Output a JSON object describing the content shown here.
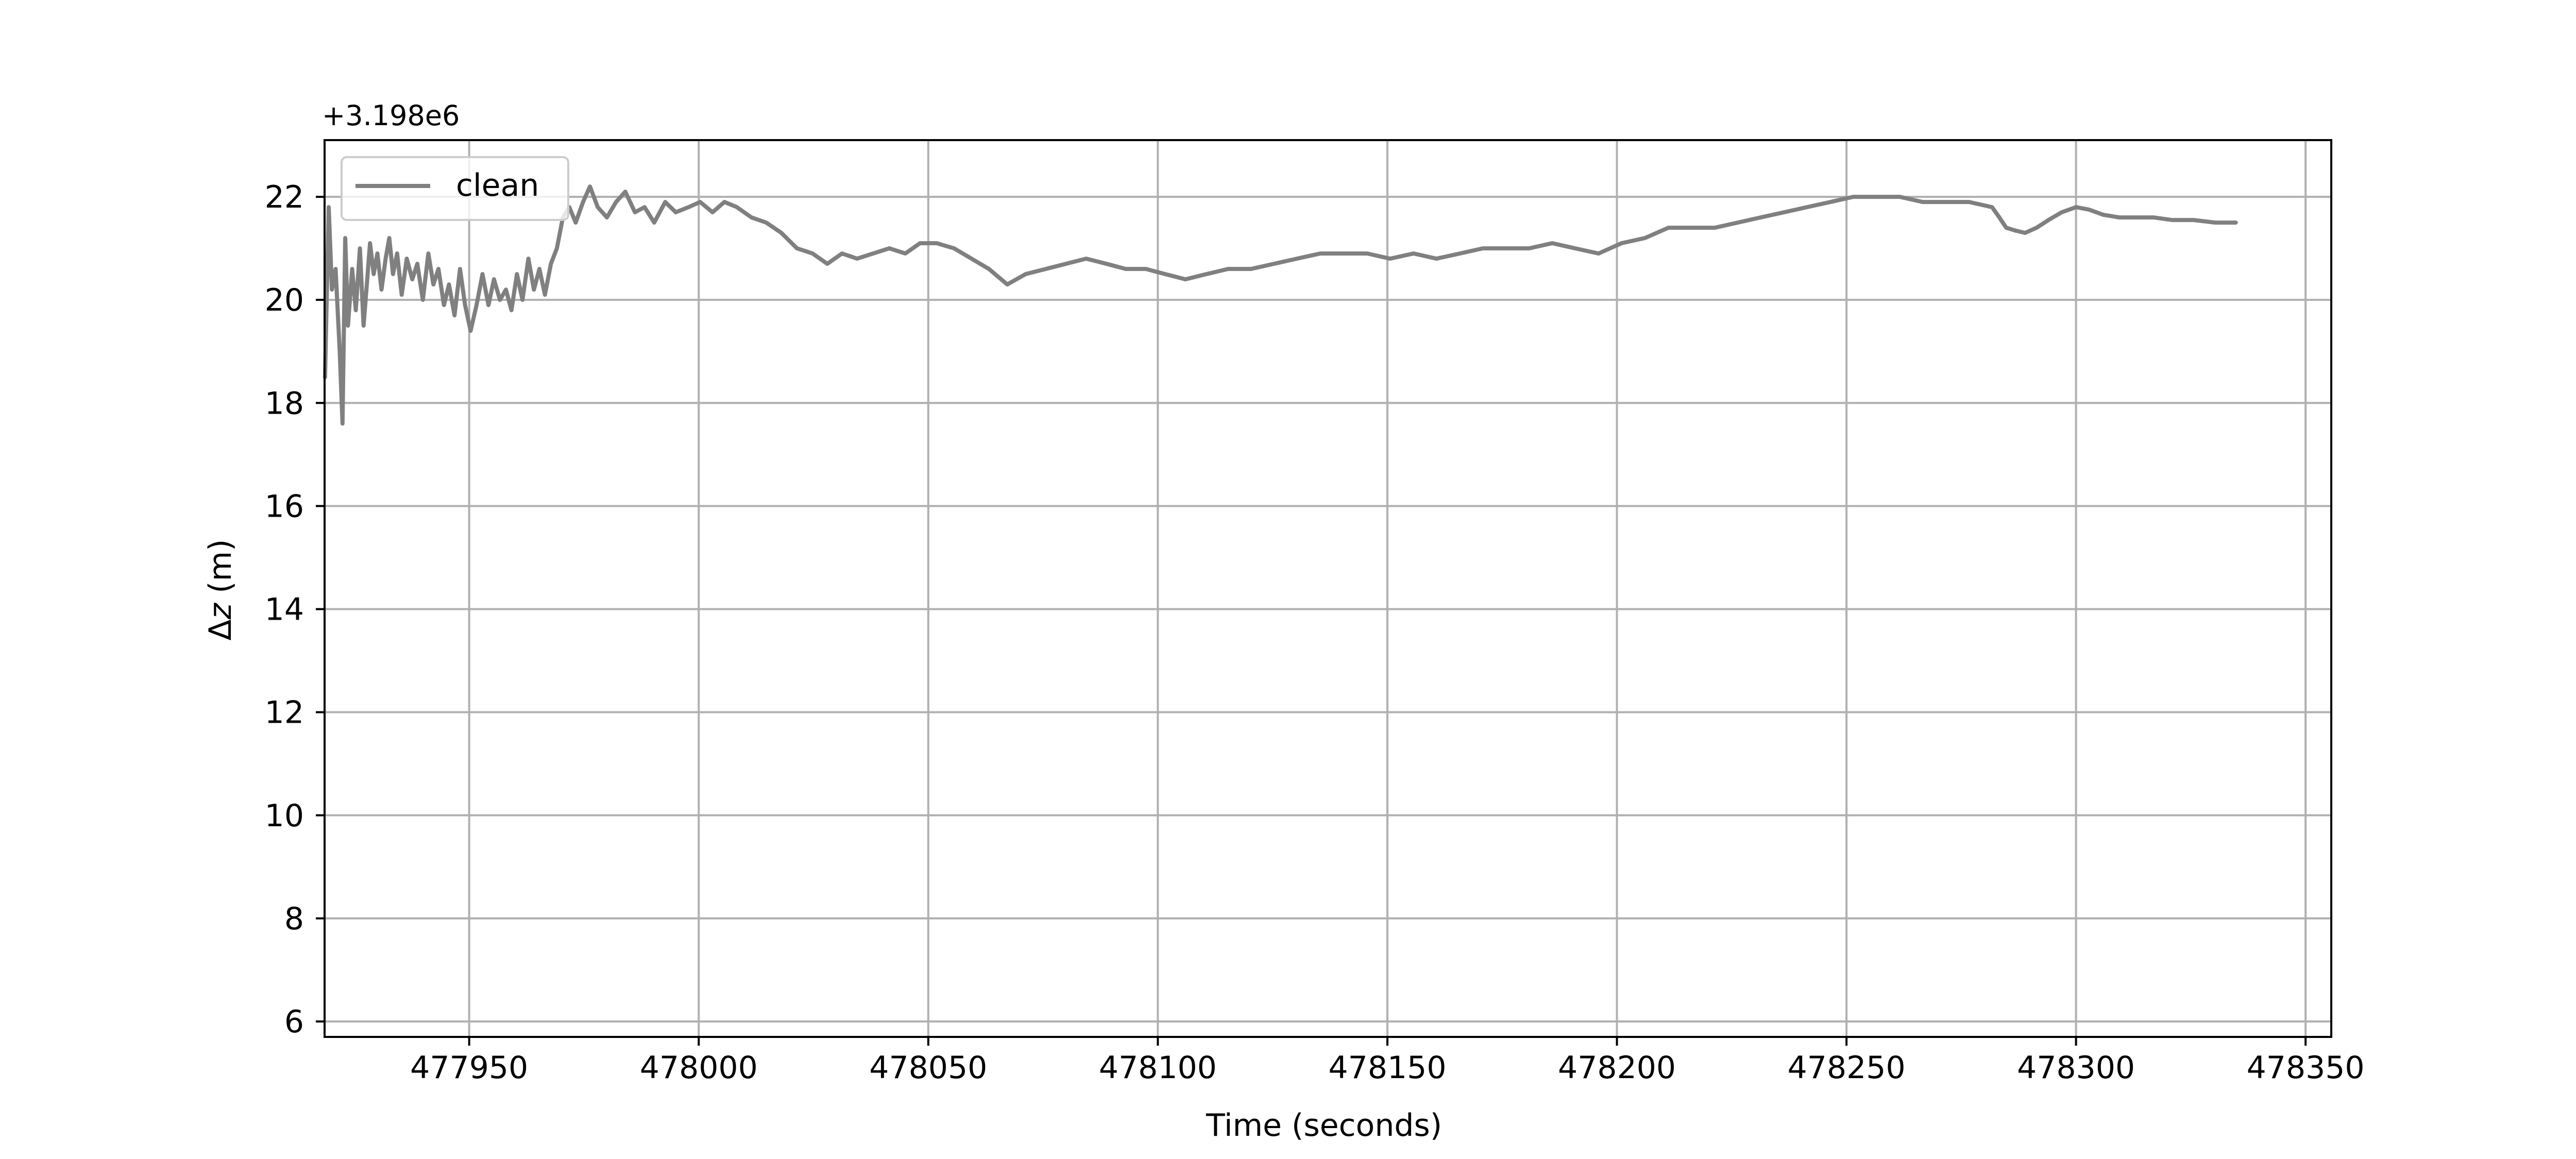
{
  "chart_data": {
    "type": "line",
    "title": "",
    "xlabel": "Time (seconds)",
    "ylabel_prefix": "Δ",
    "ylabel_var": "z",
    "ylabel_suffix": " (m)",
    "offset_label": "+3.198e6",
    "y_offset": 3198000,
    "xlim": [
      477918.5,
      478355.6
    ],
    "ylim": [
      5.7,
      23.1
    ],
    "x_ticks": [
      477950,
      478000,
      478050,
      478100,
      478150,
      478200,
      478250,
      478300,
      478350
    ],
    "x_tick_labels": [
      "477950",
      "478000",
      "478050",
      "478100",
      "478150",
      "478200",
      "478250",
      "478300",
      "478350"
    ],
    "y_ticks": [
      6,
      8,
      10,
      12,
      14,
      16,
      18,
      20,
      22
    ],
    "y_tick_labels": [
      "6",
      "8",
      "10",
      "12",
      "14",
      "16",
      "18",
      "20",
      "22"
    ],
    "grid": true,
    "legend_position": "top-left",
    "colors": {
      "line": "#808080",
      "grid": "#b0b0b0",
      "axes": "#000000",
      "legend_border": "#cccccc"
    },
    "series": [
      {
        "name": "clean",
        "x": [
          477918.6,
          477919.4,
          477920.1,
          477920.9,
          477921.8,
          477922.4,
          477923.0,
          477923.6,
          477924.5,
          477925.3,
          477926.2,
          477927.0,
          477927.7,
          477928.4,
          477929.2,
          477930.0,
          477930.9,
          477931.8,
          477932.6,
          477933.4,
          477934.3,
          477935.3,
          477936.4,
          477937.6,
          477938.7,
          477939.9,
          477941.1,
          477942.2,
          477943.3,
          477944.5,
          477945.6,
          477946.8,
          477948.0,
          477949.1,
          477950.3,
          477951.6,
          477952.9,
          477954.2,
          477955.4,
          477956.7,
          477958.0,
          477959.2,
          477960.4,
          477961.6,
          477962.9,
          477964.1,
          477965.3,
          477966.5,
          477967.8,
          477969.1,
          477970.4,
          477971.8,
          477973.2,
          477974.8,
          477976.3,
          477978.0,
          477980.0,
          477982.0,
          477984.0,
          477986.1,
          477988.2,
          477990.3,
          477992.7,
          477995.0,
          477997.8,
          478000.3,
          478003.0,
          478005.6,
          478008.3,
          478011.5,
          478014.7,
          478018.0,
          478021.4,
          478024.8,
          478028.0,
          478031.2,
          478034.5,
          478038.0,
          478041.5,
          478045.0,
          478048.2,
          478051.8,
          478055.6,
          478059.4,
          478063.2,
          478067.2,
          478071.2,
          478075.6,
          478080.0,
          478084.4,
          478088.8,
          478093.0,
          478097.4,
          478101.6,
          478106.0,
          478110.6,
          478115.3,
          478120.3,
          478125.3,
          478130.3,
          478135.4,
          478140.5,
          478145.6,
          478150.6,
          478155.7,
          478160.7,
          478165.8,
          478170.8,
          478175.9,
          478180.9,
          478185.9,
          478190.9,
          478196.0,
          478201.0,
          478206.1,
          478211.2,
          478216.2,
          478221.3,
          478226.3,
          478231.3,
          478236.4,
          478241.4,
          478246.5,
          478251.5,
          478256.5,
          478261.6,
          478266.6,
          478271.6,
          478276.7,
          478281.7,
          478283.3,
          478284.8,
          478286.6,
          478288.9,
          478291.4,
          478294.0,
          478296.9,
          478300.0,
          478302.9,
          478306.0,
          478309.4,
          478312.9,
          478316.9,
          478320.9,
          478325.6,
          478330.3,
          478334.8
        ],
        "values": [
          18.5,
          21.8,
          20.2,
          20.6,
          19.0,
          17.6,
          21.2,
          19.5,
          20.6,
          19.8,
          21.0,
          19.5,
          20.3,
          21.1,
          20.5,
          20.9,
          20.2,
          20.8,
          21.2,
          20.5,
          20.9,
          20.1,
          20.8,
          20.4,
          20.7,
          20.0,
          20.9,
          20.3,
          20.6,
          19.9,
          20.3,
          19.7,
          20.6,
          19.9,
          19.4,
          19.9,
          20.5,
          19.9,
          20.4,
          20.0,
          20.2,
          19.8,
          20.5,
          20.0,
          20.8,
          20.2,
          20.6,
          20.1,
          20.7,
          21.0,
          21.6,
          21.8,
          21.5,
          21.9,
          22.2,
          21.8,
          21.6,
          21.9,
          22.1,
          21.7,
          21.8,
          21.5,
          21.9,
          21.7,
          21.8,
          21.9,
          21.7,
          21.9,
          21.8,
          21.6,
          21.5,
          21.3,
          21.0,
          20.9,
          20.7,
          20.9,
          20.8,
          20.9,
          21.0,
          20.9,
          21.1,
          21.1,
          21.0,
          20.8,
          20.6,
          20.3,
          20.5,
          20.6,
          20.7,
          20.8,
          20.7,
          20.6,
          20.6,
          20.5,
          20.4,
          20.5,
          20.6,
          20.6,
          20.7,
          20.8,
          20.9,
          20.9,
          20.9,
          20.8,
          20.9,
          20.8,
          20.9,
          21.0,
          21.0,
          21.0,
          21.1,
          21.0,
          20.9,
          21.1,
          21.2,
          21.4,
          21.4,
          21.4,
          21.5,
          21.6,
          21.7,
          21.8,
          21.9,
          22.0,
          22.0,
          22.0,
          21.9,
          21.9,
          21.9,
          21.8,
          21.6,
          21.4,
          21.35,
          21.3,
          21.4,
          21.55,
          21.7,
          21.8,
          21.75,
          21.65,
          21.6,
          21.6,
          21.6,
          21.55,
          21.55,
          21.5,
          21.5
        ]
      }
    ]
  }
}
